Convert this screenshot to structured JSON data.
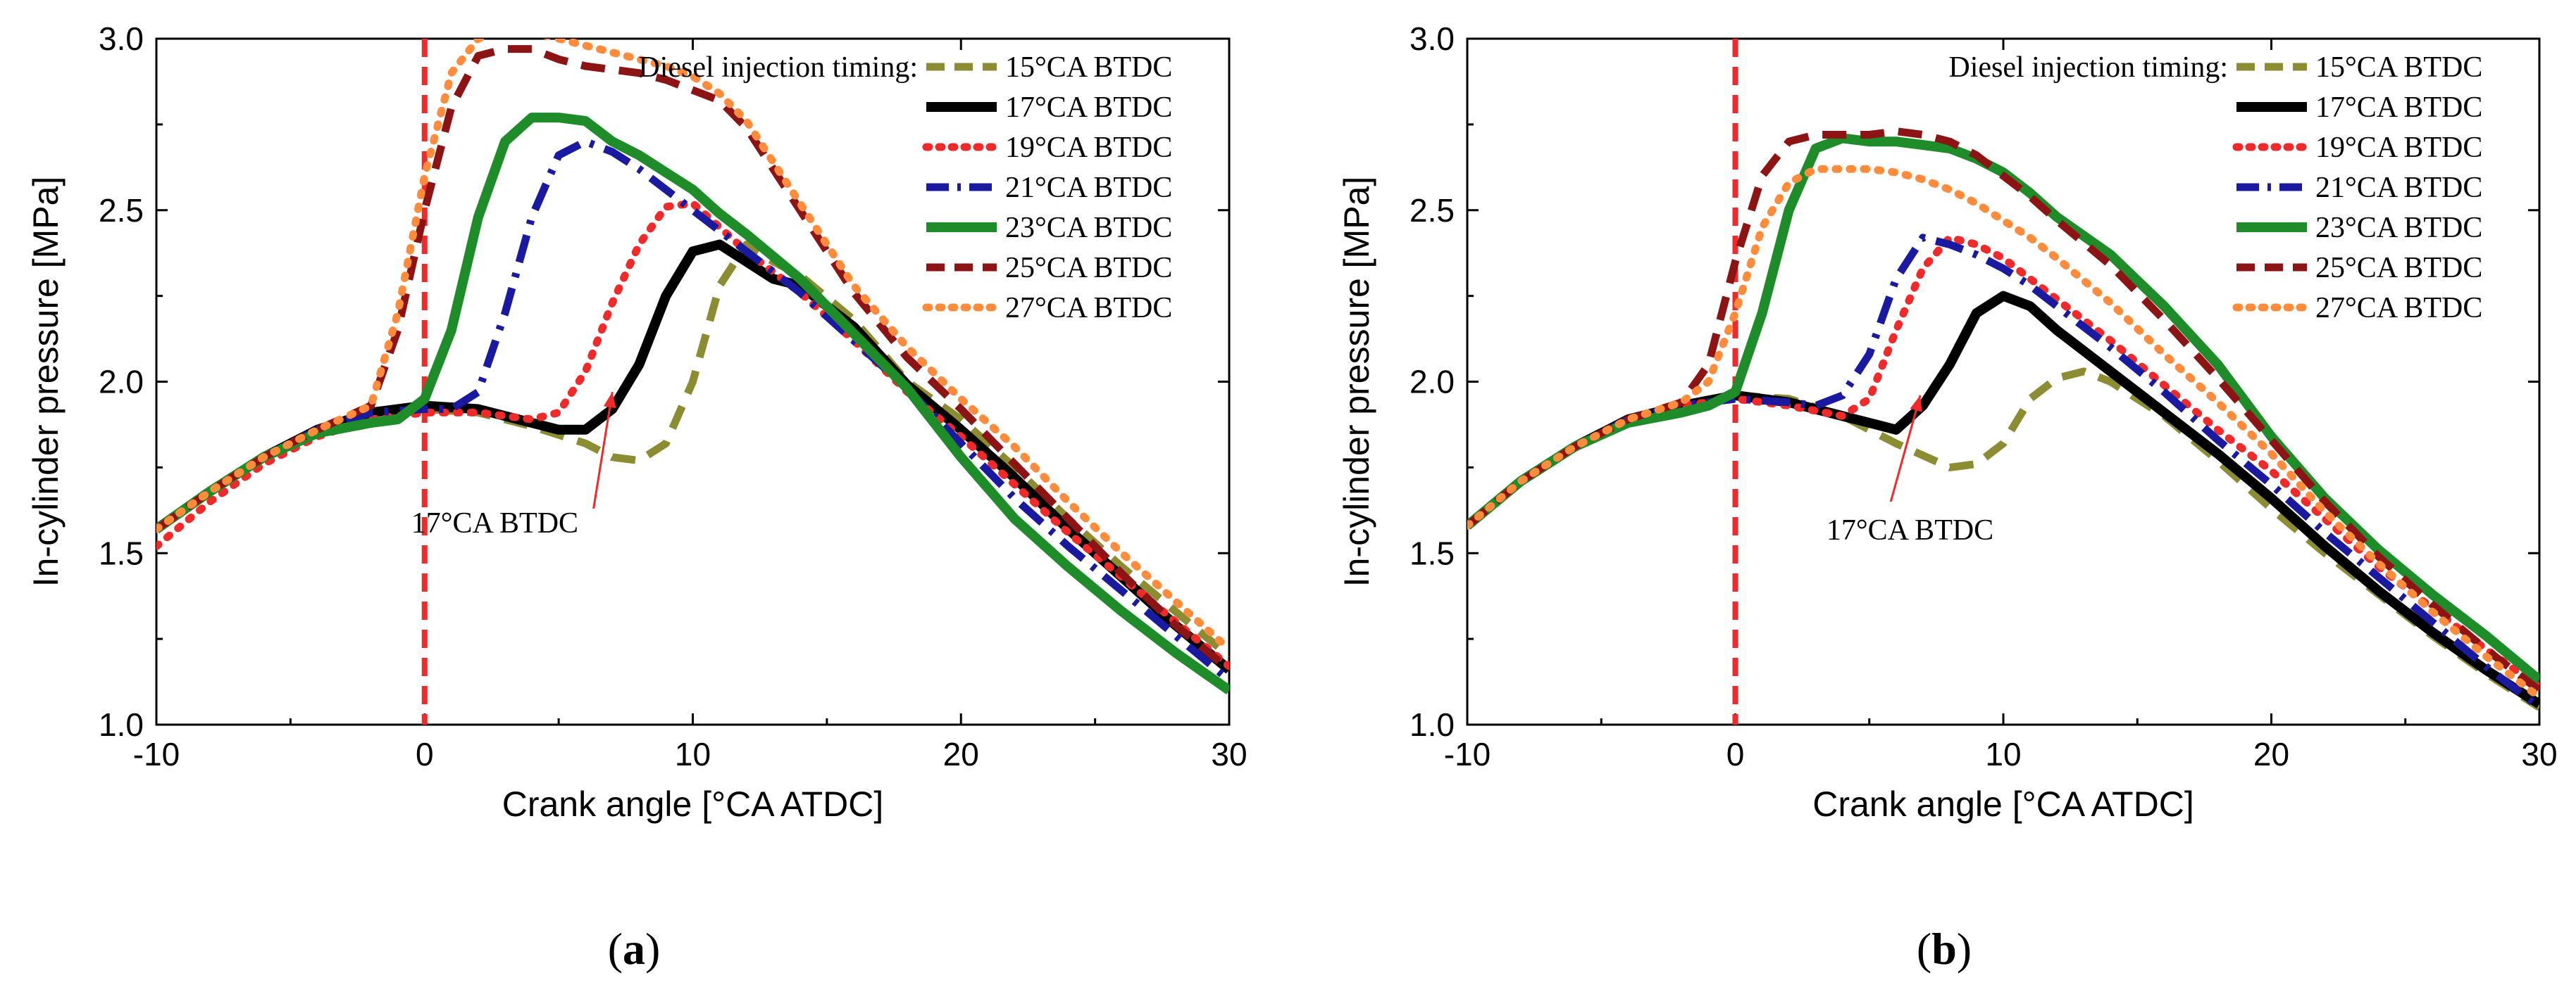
{
  "chart_data": [
    {
      "type": "line",
      "panel_label": "(a)",
      "panel_letter": "a",
      "xlabel": "Crank angle [°CA ATDC]",
      "ylabel": "In-cylinder pressure [MPa]",
      "xlim": [
        -10,
        30
      ],
      "ylim": [
        1.0,
        3.0
      ],
      "xticks": [
        -10,
        0,
        10,
        20,
        30
      ],
      "xtick_labels": [
        "-10",
        "0",
        "10",
        "20",
        "30"
      ],
      "yticks": [
        1.0,
        1.5,
        2.0,
        2.5,
        3.0
      ],
      "ytick_labels": [
        "1.0",
        "1.5",
        "2.0",
        "2.5",
        "3.0"
      ],
      "legend_title": "Diesel injection timing:",
      "legend_position": "top-right",
      "vline_x": 0,
      "vline_color": "#ee2a2a",
      "annotation": {
        "text": "17°CA BTDC",
        "arrow_from": [
          6.3,
          1.63
        ],
        "arrow_to": [
          7.0,
          1.97
        ],
        "text_at": [
          -0.5,
          1.56
        ]
      },
      "series": [
        {
          "name": "15°CA BTDC",
          "color": "#8c8c32",
          "dash": "dashed",
          "x": [
            -10,
            -8,
            -6,
            -4,
            -2,
            0,
            2,
            4,
            6,
            7,
            8,
            9,
            10,
            11,
            12,
            13,
            14,
            16,
            18,
            20,
            22,
            24,
            26,
            28,
            30
          ],
          "y": [
            1.57,
            1.68,
            1.78,
            1.86,
            1.91,
            1.92,
            1.91,
            1.87,
            1.82,
            1.78,
            1.77,
            1.82,
            2.0,
            2.28,
            2.4,
            2.35,
            2.31,
            2.18,
            2.0,
            1.89,
            1.75,
            1.6,
            1.46,
            1.33,
            1.2
          ]
        },
        {
          "name": "17°CA BTDC",
          "color": "#000000",
          "dash": "solid",
          "x": [
            -10,
            -8,
            -6,
            -4,
            -2,
            0,
            2,
            4,
            5,
            6,
            7,
            8,
            9,
            10,
            11,
            12,
            13,
            14,
            16,
            18,
            20,
            22,
            24,
            26,
            28,
            30
          ],
          "y": [
            1.57,
            1.68,
            1.78,
            1.86,
            1.91,
            1.93,
            1.92,
            1.88,
            1.86,
            1.86,
            1.92,
            2.05,
            2.25,
            2.38,
            2.4,
            2.35,
            2.3,
            2.28,
            2.16,
            1.99,
            1.86,
            1.72,
            1.57,
            1.43,
            1.29,
            1.16
          ]
        },
        {
          "name": "19°CA BTDC",
          "color": "#ee2a2a",
          "dash": "dotted",
          "x": [
            -10,
            -8,
            -6,
            -4,
            -2,
            0,
            2,
            4,
            5,
            6,
            7,
            8,
            9,
            10,
            11,
            12,
            14,
            16,
            18,
            20,
            22,
            24,
            26,
            28,
            30
          ],
          "y": [
            1.52,
            1.65,
            1.76,
            1.84,
            1.89,
            1.91,
            1.91,
            1.89,
            1.91,
            2.03,
            2.23,
            2.4,
            2.51,
            2.52,
            2.45,
            2.38,
            2.26,
            2.12,
            1.97,
            1.84,
            1.7,
            1.56,
            1.43,
            1.3,
            1.17
          ]
        },
        {
          "name": "21°CA BTDC",
          "color": "#1a1aa0",
          "dash": "dashdot",
          "x": [
            -10,
            -8,
            -6,
            -4,
            -2,
            0,
            1,
            2,
            3,
            4,
            5,
            6,
            7,
            8,
            9,
            10,
            11,
            12,
            14,
            16,
            18,
            20,
            22,
            24,
            26,
            28,
            30
          ],
          "y": [
            1.57,
            1.68,
            1.78,
            1.86,
            1.91,
            1.92,
            1.92,
            1.97,
            2.2,
            2.48,
            2.66,
            2.7,
            2.67,
            2.62,
            2.56,
            2.5,
            2.44,
            2.38,
            2.26,
            2.12,
            1.98,
            1.82,
            1.66,
            1.52,
            1.39,
            1.26,
            1.13
          ]
        },
        {
          "name": "23°CA BTDC",
          "color": "#1e8c28",
          "dash": "solid",
          "x": [
            -10,
            -8,
            -6,
            -4,
            -2,
            -1,
            0,
            1,
            2,
            3,
            4,
            5,
            6,
            7,
            8,
            9,
            10,
            11,
            12,
            14,
            16,
            18,
            20,
            22,
            24,
            26,
            28,
            30
          ],
          "y": [
            1.57,
            1.68,
            1.78,
            1.85,
            1.88,
            1.89,
            1.95,
            2.15,
            2.48,
            2.7,
            2.77,
            2.77,
            2.76,
            2.7,
            2.66,
            2.61,
            2.56,
            2.49,
            2.43,
            2.3,
            2.14,
            1.98,
            1.78,
            1.6,
            1.46,
            1.33,
            1.21,
            1.1
          ]
        },
        {
          "name": "25°CA BTDC",
          "color": "#8c1414",
          "dash": "dashed",
          "x": [
            -10,
            -8,
            -6,
            -4,
            -2,
            -1,
            0,
            1,
            2,
            3,
            4,
            5,
            6,
            7,
            8,
            9,
            10,
            11,
            12,
            14,
            16,
            18,
            20,
            22,
            24,
            26,
            28,
            30
          ],
          "y": [
            1.57,
            1.68,
            1.78,
            1.86,
            1.93,
            2.15,
            2.5,
            2.8,
            2.95,
            2.97,
            2.97,
            2.94,
            2.92,
            2.91,
            2.9,
            2.88,
            2.85,
            2.82,
            2.74,
            2.5,
            2.26,
            2.07,
            1.92,
            1.76,
            1.6,
            1.44,
            1.29,
            1.16
          ]
        },
        {
          "name": "27°CA BTDC",
          "color": "#ff8c3c",
          "dash": "dotted",
          "x": [
            -10,
            -8,
            -6,
            -4,
            -2,
            -1,
            0,
            1,
            2,
            3,
            4,
            5,
            6,
            7,
            8,
            9,
            10,
            11,
            12,
            14,
            16,
            18,
            20,
            22,
            24,
            26,
            28,
            30
          ],
          "y": [
            1.57,
            1.68,
            1.78,
            1.86,
            1.93,
            2.2,
            2.6,
            2.9,
            3.0,
            3.03,
            3.02,
            3.0,
            2.98,
            2.96,
            2.94,
            2.92,
            2.89,
            2.84,
            2.76,
            2.52,
            2.28,
            2.1,
            1.95,
            1.81,
            1.65,
            1.5,
            1.36,
            1.22
          ]
        }
      ]
    },
    {
      "type": "line",
      "panel_label": "(b)",
      "panel_letter": "b",
      "xlabel": "Crank angle [°CA ATDC]",
      "ylabel": "In-cylinder pressure [MPa]",
      "xlim": [
        -10,
        30
      ],
      "ylim": [
        1.0,
        3.0
      ],
      "xticks": [
        -10,
        0,
        10,
        20,
        30
      ],
      "xtick_labels": [
        "-10",
        "0",
        "10",
        "20",
        "30"
      ],
      "yticks": [
        1.0,
        1.5,
        2.0,
        2.5,
        3.0
      ],
      "ytick_labels": [
        "1.0",
        "1.5",
        "2.0",
        "2.5",
        "3.0"
      ],
      "legend_title": "Diesel injection timing:",
      "legend_position": "top-right",
      "vline_x": 0,
      "vline_color": "#ee2a2a",
      "annotation": {
        "text": "17°CA BTDC",
        "arrow_from": [
          5.8,
          1.65
        ],
        "arrow_to": [
          6.9,
          1.96
        ],
        "text_at": [
          3.4,
          1.54
        ]
      },
      "series": [
        {
          "name": "15°CA BTDC",
          "color": "#8c8c32",
          "dash": "dashed",
          "x": [
            -10,
            -8,
            -6,
            -4,
            -2,
            0,
            2,
            4,
            6,
            8,
            9,
            10,
            11,
            12,
            13,
            14,
            16,
            18,
            20,
            22,
            24,
            26,
            28,
            30
          ],
          "y": [
            1.58,
            1.71,
            1.81,
            1.89,
            1.93,
            1.96,
            1.95,
            1.9,
            1.82,
            1.75,
            1.76,
            1.82,
            1.95,
            2.01,
            2.03,
            2.0,
            1.9,
            1.77,
            1.63,
            1.5,
            1.38,
            1.26,
            1.15,
            1.05
          ]
        },
        {
          "name": "17°CA BTDC",
          "color": "#000000",
          "dash": "solid",
          "x": [
            -10,
            -8,
            -6,
            -4,
            -2,
            0,
            2,
            4,
            5,
            6,
            7,
            8,
            9,
            10,
            11,
            12,
            14,
            16,
            18,
            20,
            22,
            24,
            26,
            28,
            30
          ],
          "y": [
            1.58,
            1.71,
            1.81,
            1.89,
            1.93,
            1.96,
            1.94,
            1.9,
            1.88,
            1.86,
            1.93,
            2.05,
            2.2,
            2.25,
            2.22,
            2.15,
            2.03,
            1.91,
            1.79,
            1.66,
            1.52,
            1.39,
            1.27,
            1.16,
            1.06
          ]
        },
        {
          "name": "19°CA BTDC",
          "color": "#ee2a2a",
          "dash": "dotted",
          "x": [
            -10,
            -8,
            -6,
            -4,
            -2,
            0,
            2,
            4,
            5,
            6,
            7,
            8,
            9,
            10,
            11,
            12,
            14,
            16,
            18,
            20,
            22,
            24,
            26,
            28,
            30
          ],
          "y": [
            1.58,
            1.71,
            1.81,
            1.89,
            1.93,
            1.95,
            1.93,
            1.9,
            1.95,
            2.15,
            2.33,
            2.42,
            2.4,
            2.36,
            2.3,
            2.24,
            2.12,
            1.99,
            1.86,
            1.74,
            1.6,
            1.46,
            1.34,
            1.22,
            1.11
          ]
        },
        {
          "name": "21°CA BTDC",
          "color": "#1a1aa0",
          "dash": "dashdot",
          "x": [
            -10,
            -8,
            -6,
            -4,
            -2,
            0,
            2,
            3,
            4,
            5,
            6,
            7,
            8,
            9,
            10,
            11,
            12,
            14,
            16,
            18,
            20,
            22,
            24,
            26,
            28,
            30
          ],
          "y": [
            1.58,
            1.71,
            1.81,
            1.89,
            1.93,
            1.95,
            1.94,
            1.93,
            1.96,
            2.08,
            2.3,
            2.42,
            2.4,
            2.37,
            2.33,
            2.28,
            2.22,
            2.1,
            1.97,
            1.83,
            1.7,
            1.56,
            1.43,
            1.3,
            1.17,
            1.05
          ]
        },
        {
          "name": "23°CA BTDC",
          "color": "#1e8c28",
          "dash": "solid",
          "x": [
            -10,
            -8,
            -6,
            -4,
            -2,
            -1,
            0,
            1,
            2,
            3,
            4,
            5,
            6,
            7,
            8,
            9,
            10,
            11,
            12,
            14,
            16,
            18,
            20,
            22,
            24,
            26,
            28,
            30
          ],
          "y": [
            1.58,
            1.71,
            1.81,
            1.88,
            1.91,
            1.93,
            1.97,
            2.2,
            2.5,
            2.68,
            2.71,
            2.7,
            2.7,
            2.69,
            2.68,
            2.65,
            2.61,
            2.55,
            2.48,
            2.37,
            2.22,
            2.05,
            1.84,
            1.66,
            1.51,
            1.38,
            1.26,
            1.13
          ]
        },
        {
          "name": "25°CA BTDC",
          "color": "#8c1414",
          "dash": "dashed",
          "x": [
            -10,
            -8,
            -6,
            -4,
            -2,
            -1,
            0,
            1,
            2,
            3,
            4,
            5,
            6,
            7,
            8,
            9,
            10,
            11,
            12,
            14,
            16,
            18,
            20,
            22,
            24,
            26,
            28,
            30
          ],
          "y": [
            1.58,
            1.71,
            1.81,
            1.89,
            1.94,
            2.05,
            2.35,
            2.6,
            2.7,
            2.72,
            2.72,
            2.72,
            2.73,
            2.72,
            2.7,
            2.66,
            2.6,
            2.54,
            2.47,
            2.34,
            2.18,
            2.01,
            1.83,
            1.65,
            1.49,
            1.35,
            1.22,
            1.1
          ]
        },
        {
          "name": "27°CA BTDC",
          "color": "#ff8c3c",
          "dash": "dotted",
          "x": [
            -10,
            -8,
            -6,
            -4,
            -2,
            -1,
            0,
            1,
            2,
            3,
            4,
            5,
            6,
            7,
            8,
            9,
            10,
            11,
            12,
            14,
            16,
            18,
            20,
            22,
            24,
            26,
            28,
            30
          ],
          "y": [
            1.58,
            1.71,
            1.81,
            1.89,
            1.94,
            2.0,
            2.2,
            2.45,
            2.58,
            2.62,
            2.62,
            2.62,
            2.61,
            2.59,
            2.56,
            2.52,
            2.47,
            2.42,
            2.36,
            2.23,
            2.08,
            1.94,
            1.79,
            1.62,
            1.47,
            1.33,
            1.2,
            1.08
          ]
        }
      ]
    }
  ]
}
